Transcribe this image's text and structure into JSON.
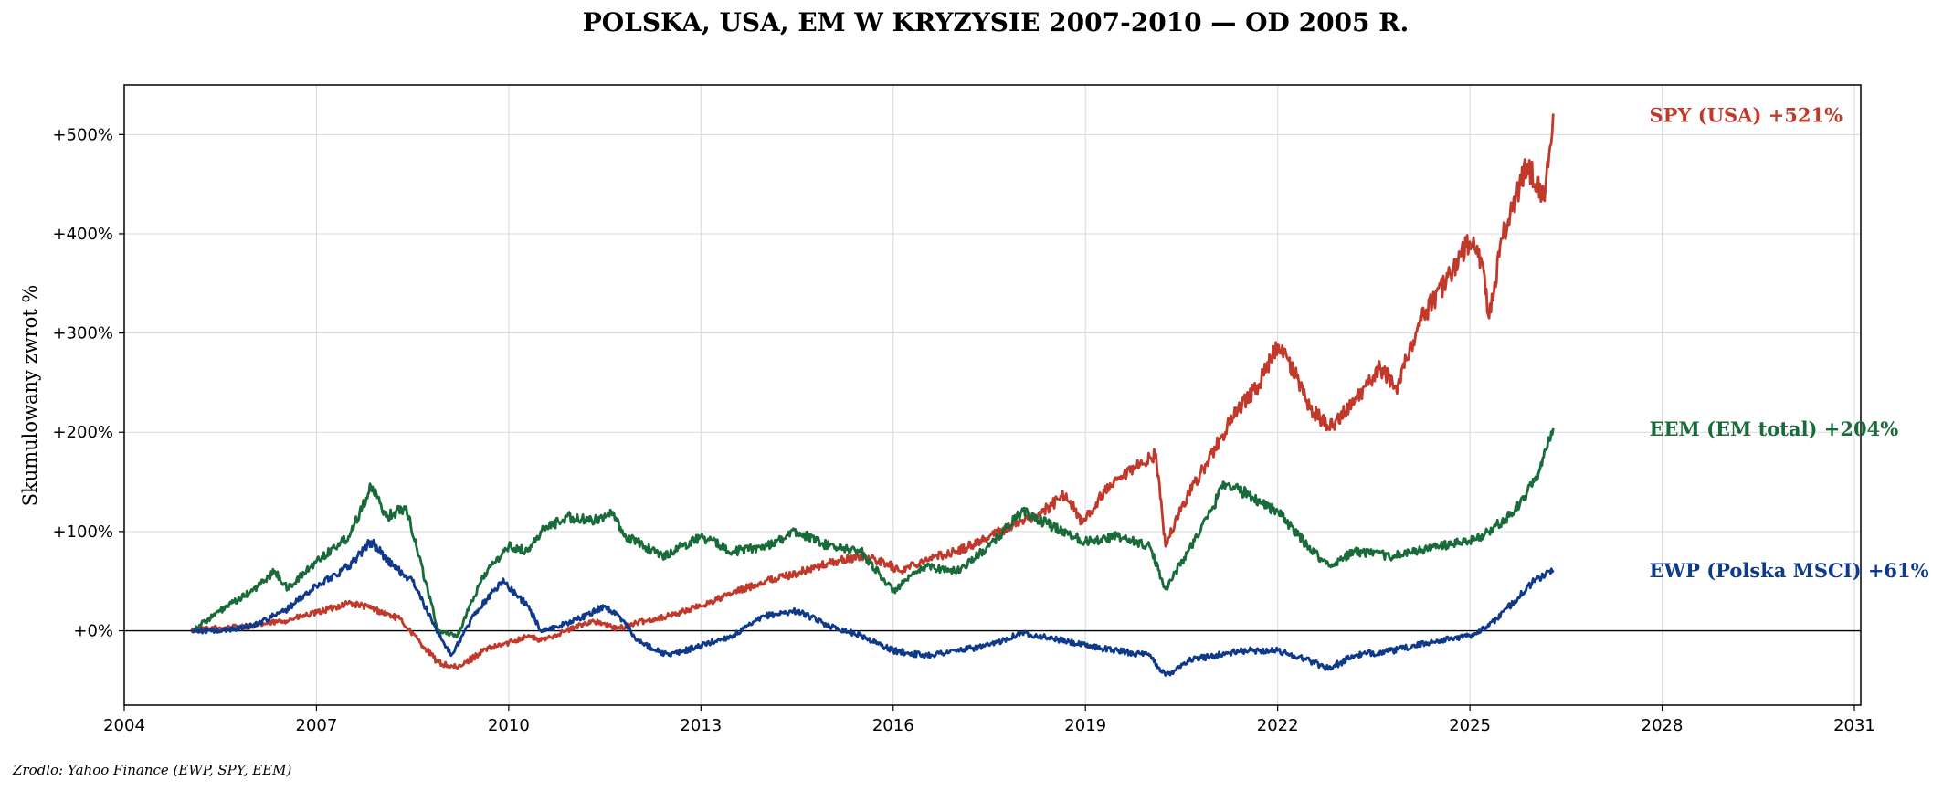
{
  "chart_data": {
    "type": "line",
    "title": "POLSKA, USA, EM W KRYZYSIE 2007-2010 — OD 2005 R.",
    "xlabel": "",
    "ylabel": "Skumulowany zwrot %",
    "xlim": [
      2004.0,
      2031.1
    ],
    "ylim": [
      -75,
      550
    ],
    "x_ticks": [
      2004,
      2007,
      2010,
      2013,
      2016,
      2019,
      2022,
      2025,
      2028,
      2031
    ],
    "x_tick_labels": [
      "2004",
      "2007",
      "2010",
      "2013",
      "2016",
      "2019",
      "2022",
      "2025",
      "2028",
      "2031"
    ],
    "y_ticks": [
      0,
      100,
      200,
      300,
      400,
      500
    ],
    "y_tick_labels": [
      "+0%",
      "+100%",
      "+200%",
      "+300%",
      "+400%",
      "+500%"
    ],
    "grid": true,
    "zero_line": true,
    "series": [
      {
        "name": "SPY (USA)",
        "label": "SPY (USA)  +521%",
        "color": "#c0392b",
        "x": [
          2005.05,
          2005.5,
          2006.0,
          2006.5,
          2007.0,
          2007.5,
          2007.8,
          2008.3,
          2008.7,
          2008.9,
          2009.2,
          2009.6,
          2010.0,
          2010.3,
          2010.5,
          2010.9,
          2011.3,
          2011.7,
          2012.0,
          2012.5,
          2013.0,
          2013.5,
          2014.0,
          2014.5,
          2015.0,
          2015.5,
          2015.9,
          2016.1,
          2016.5,
          2017.0,
          2017.5,
          2018.0,
          2018.3,
          2018.7,
          2018.95,
          2019.3,
          2019.8,
          2020.1,
          2020.25,
          2020.5,
          2020.9,
          2021.3,
          2021.7,
          2022.0,
          2022.3,
          2022.5,
          2022.8,
          2023.2,
          2023.6,
          2023.85,
          2024.2,
          2024.6,
          2025.0,
          2025.2,
          2025.3,
          2025.5,
          2025.9,
          2026.15,
          2026.25,
          2026.3
        ],
        "values": [
          0,
          3,
          5,
          10,
          18,
          28,
          24,
          12,
          -18,
          -32,
          -38,
          -20,
          -12,
          -5,
          -10,
          0,
          10,
          2,
          8,
          15,
          25,
          38,
          50,
          58,
          68,
          75,
          68,
          60,
          72,
          80,
          95,
          110,
          118,
          138,
          108,
          140,
          165,
          178,
          85,
          125,
          170,
          215,
          248,
          288,
          255,
          225,
          205,
          230,
          265,
          245,
          310,
          350,
          392,
          370,
          315,
          395,
          470,
          435,
          488,
          521
        ]
      },
      {
        "name": "EEM (EM total)",
        "label": "EEM (EM total)  +204%",
        "color": "#1a6b3a",
        "x": [
          2005.05,
          2005.5,
          2006.0,
          2006.35,
          2006.55,
          2007.0,
          2007.5,
          2007.85,
          2008.1,
          2008.4,
          2008.7,
          2008.9,
          2009.2,
          2009.6,
          2010.0,
          2010.3,
          2010.5,
          2010.9,
          2011.3,
          2011.6,
          2011.8,
          2012.0,
          2012.4,
          2013.0,
          2013.5,
          2014.0,
          2014.5,
          2015.0,
          2015.5,
          2016.0,
          2016.5,
          2017.0,
          2017.5,
          2018.0,
          2018.5,
          2019.0,
          2019.5,
          2020.0,
          2020.25,
          2020.6,
          2021.0,
          2021.15,
          2021.6,
          2022.0,
          2022.4,
          2022.8,
          2023.2,
          2023.8,
          2024.5,
          2025.0,
          2025.3,
          2025.7,
          2026.0,
          2026.15,
          2026.3
        ],
        "values": [
          0,
          20,
          40,
          60,
          42,
          70,
          95,
          145,
          115,
          125,
          50,
          0,
          -5,
          55,
          85,
          80,
          100,
          115,
          110,
          120,
          95,
          90,
          75,
          95,
          80,
          85,
          100,
          85,
          80,
          40,
          65,
          60,
          85,
          120,
          105,
          90,
          95,
          85,
          42,
          80,
          125,
          150,
          135,
          120,
          90,
          65,
          80,
          75,
          85,
          90,
          100,
          120,
          150,
          175,
          204
        ]
      },
      {
        "name": "EWP (Polska MSCI)",
        "label": "EWP (Polska MSCI)  +61%",
        "color": "#0f3a8c",
        "x": [
          2005.05,
          2005.5,
          2006.0,
          2006.5,
          2007.0,
          2007.5,
          2007.85,
          2008.2,
          2008.5,
          2008.8,
          2009.1,
          2009.5,
          2009.9,
          2010.3,
          2010.5,
          2010.8,
          2011.2,
          2011.5,
          2011.8,
          2012.0,
          2012.5,
          2013.0,
          2013.5,
          2014.0,
          2014.5,
          2015.0,
          2015.5,
          2016.0,
          2016.5,
          2017.0,
          2017.5,
          2018.0,
          2018.5,
          2019.0,
          2019.5,
          2020.0,
          2020.25,
          2020.6,
          2021.0,
          2021.5,
          2022.0,
          2022.5,
          2022.8,
          2023.2,
          2023.8,
          2024.5,
          2025.0,
          2025.3,
          2025.7,
          2026.0,
          2026.3
        ],
        "values": [
          0,
          0,
          5,
          20,
          45,
          65,
          90,
          65,
          50,
          10,
          -25,
          20,
          50,
          25,
          0,
          5,
          15,
          25,
          10,
          -10,
          -25,
          -15,
          -5,
          15,
          20,
          5,
          -5,
          -20,
          -25,
          -20,
          -15,
          -2,
          -8,
          -15,
          -20,
          -25,
          -45,
          -30,
          -25,
          -20,
          -20,
          -30,
          -38,
          -25,
          -20,
          -10,
          -5,
          5,
          30,
          50,
          61
        ]
      }
    ]
  },
  "source": "Zrodlo: Yahoo Finance (EWP, SPY, EEM)"
}
